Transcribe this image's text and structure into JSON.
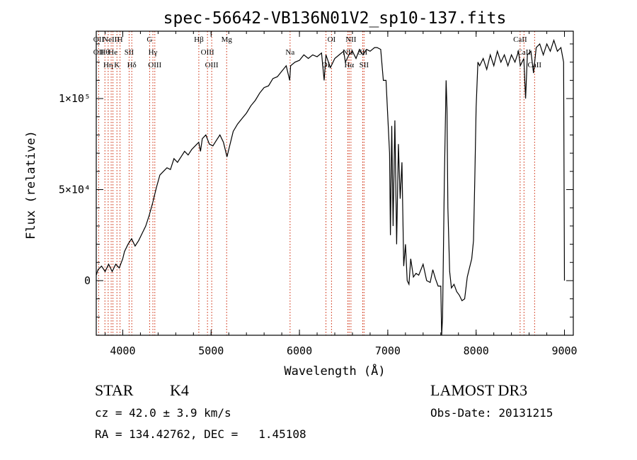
{
  "chart_data": {
    "type": "line",
    "title": "spec-56642-VB136N01V2_sp10-137.fits",
    "xlabel": "Wavelength (Å)",
    "ylabel": "Flux (relative)",
    "xlim": [
      3700,
      9100
    ],
    "ylim": [
      -30000,
      137000
    ],
    "x_ticks": [
      {
        "value": 4000,
        "label": "4000"
      },
      {
        "value": 5000,
        "label": "5000"
      },
      {
        "value": 6000,
        "label": "6000"
      },
      {
        "value": 7000,
        "label": "7000"
      },
      {
        "value": 8000,
        "label": "8000"
      },
      {
        "value": 9000,
        "label": "9000"
      }
    ],
    "y_ticks": [
      {
        "value": 0,
        "label": "0"
      },
      {
        "value": 50000,
        "label": "5×10⁴"
      },
      {
        "value": 100000,
        "label": "1×10⁵"
      }
    ],
    "grid": false,
    "line_color": "#000000",
    "marker_color": "#cc2200",
    "series": [
      {
        "points": [
          [
            3700,
            3000
          ],
          [
            3720,
            6000
          ],
          [
            3760,
            8000
          ],
          [
            3800,
            5000
          ],
          [
            3840,
            9000
          ],
          [
            3880,
            5000
          ],
          [
            3920,
            9000
          ],
          [
            3960,
            7000
          ],
          [
            4000,
            12000
          ],
          [
            4020,
            16000
          ],
          [
            4060,
            20000
          ],
          [
            4100,
            23000
          ],
          [
            4140,
            19000
          ],
          [
            4180,
            22000
          ],
          [
            4220,
            26000
          ],
          [
            4260,
            30000
          ],
          [
            4300,
            36000
          ],
          [
            4340,
            43000
          ],
          [
            4380,
            51000
          ],
          [
            4420,
            58000
          ],
          [
            4460,
            60000
          ],
          [
            4500,
            62000
          ],
          [
            4540,
            61000
          ],
          [
            4580,
            67000
          ],
          [
            4620,
            65000
          ],
          [
            4660,
            68000
          ],
          [
            4700,
            71000
          ],
          [
            4740,
            69000
          ],
          [
            4780,
            72000
          ],
          [
            4820,
            74000
          ],
          [
            4860,
            76000
          ],
          [
            4880,
            71000
          ],
          [
            4900,
            78000
          ],
          [
            4940,
            80000
          ],
          [
            4980,
            75000
          ],
          [
            5020,
            74000
          ],
          [
            5060,
            77000
          ],
          [
            5100,
            80000
          ],
          [
            5140,
            76000
          ],
          [
            5180,
            68000
          ],
          [
            5200,
            72000
          ],
          [
            5250,
            82000
          ],
          [
            5300,
            86000
          ],
          [
            5350,
            89000
          ],
          [
            5400,
            92000
          ],
          [
            5450,
            96000
          ],
          [
            5500,
            99000
          ],
          [
            5550,
            103000
          ],
          [
            5600,
            106000
          ],
          [
            5650,
            107000
          ],
          [
            5700,
            111000
          ],
          [
            5750,
            112000
          ],
          [
            5800,
            115000
          ],
          [
            5850,
            118000
          ],
          [
            5890,
            110000
          ],
          [
            5900,
            118000
          ],
          [
            5950,
            120000
          ],
          [
            6000,
            121000
          ],
          [
            6050,
            124000
          ],
          [
            6100,
            122000
          ],
          [
            6150,
            124000
          ],
          [
            6200,
            123000
          ],
          [
            6250,
            125000
          ],
          [
            6280,
            110000
          ],
          [
            6300,
            124000
          ],
          [
            6350,
            117000
          ],
          [
            6400,
            122000
          ],
          [
            6450,
            124000
          ],
          [
            6500,
            126000
          ],
          [
            6520,
            120000
          ],
          [
            6560,
            124000
          ],
          [
            6600,
            126000
          ],
          [
            6640,
            122000
          ],
          [
            6680,
            127000
          ],
          [
            6720,
            124000
          ],
          [
            6760,
            127000
          ],
          [
            6800,
            126000
          ],
          [
            6850,
            128000
          ],
          [
            6880,
            128000
          ],
          [
            6920,
            127000
          ],
          [
            6950,
            110000
          ],
          [
            6980,
            110000
          ],
          [
            7000,
            90000
          ],
          [
            7020,
            70000
          ],
          [
            7030,
            25000
          ],
          [
            7045,
            85000
          ],
          [
            7060,
            30000
          ],
          [
            7080,
            88000
          ],
          [
            7100,
            20000
          ],
          [
            7120,
            75000
          ],
          [
            7140,
            45000
          ],
          [
            7160,
            65000
          ],
          [
            7180,
            8000
          ],
          [
            7200,
            20000
          ],
          [
            7220,
            0
          ],
          [
            7240,
            -2000
          ],
          [
            7260,
            12000
          ],
          [
            7290,
            2000
          ],
          [
            7320,
            4000
          ],
          [
            7350,
            3000
          ],
          [
            7400,
            9000
          ],
          [
            7440,
            0
          ],
          [
            7480,
            -1000
          ],
          [
            7510,
            6000
          ],
          [
            7540,
            1000
          ],
          [
            7570,
            -3000
          ],
          [
            7600,
            -3000
          ],
          [
            7610,
            -30000
          ],
          [
            7620,
            -20000
          ],
          [
            7640,
            55000
          ],
          [
            7660,
            110000
          ],
          [
            7670,
            95000
          ],
          [
            7680,
            40000
          ],
          [
            7700,
            5000
          ],
          [
            7720,
            -4000
          ],
          [
            7750,
            -2000
          ],
          [
            7780,
            -6000
          ],
          [
            7810,
            -8000
          ],
          [
            7840,
            -11000
          ],
          [
            7870,
            -10000
          ],
          [
            7900,
            2000
          ],
          [
            7920,
            6000
          ],
          [
            7950,
            12000
          ],
          [
            7970,
            22000
          ],
          [
            7985,
            55000
          ],
          [
            8000,
            95000
          ],
          [
            8020,
            120000
          ],
          [
            8040,
            118000
          ],
          [
            8080,
            122000
          ],
          [
            8120,
            116000
          ],
          [
            8160,
            124000
          ],
          [
            8200,
            118000
          ],
          [
            8240,
            126000
          ],
          [
            8280,
            120000
          ],
          [
            8320,
            124000
          ],
          [
            8360,
            118000
          ],
          [
            8400,
            124000
          ],
          [
            8440,
            120000
          ],
          [
            8480,
            126000
          ],
          [
            8500,
            118000
          ],
          [
            8540,
            122000
          ],
          [
            8560,
            100000
          ],
          [
            8580,
            124000
          ],
          [
            8620,
            126000
          ],
          [
            8650,
            114000
          ],
          [
            8680,
            128000
          ],
          [
            8720,
            130000
          ],
          [
            8760,
            124000
          ],
          [
            8800,
            130000
          ],
          [
            8840,
            126000
          ],
          [
            8880,
            132000
          ],
          [
            8920,
            126000
          ],
          [
            8960,
            128000
          ],
          [
            8990,
            120000
          ],
          [
            9000,
            0
          ]
        ]
      }
    ],
    "line_markers": [
      {
        "x": 3727,
        "labels": [
          "OII",
          "OII"
        ]
      },
      {
        "x": 3798,
        "labels": [
          "Hθ"
        ]
      },
      {
        "x": 3835,
        "labels": [
          "Hη"
        ]
      },
      {
        "x": 3869,
        "labels": [
          "NeIII"
        ]
      },
      {
        "x": 3889,
        "labels": [
          "He"
        ]
      },
      {
        "x": 3934,
        "labels": [
          "K"
        ]
      },
      {
        "x": 3969,
        "labels": [
          "H"
        ]
      },
      {
        "x": 4072,
        "labels": [
          "SII"
        ]
      },
      {
        "x": 4102,
        "labels": [
          "Hδ"
        ]
      },
      {
        "x": 4304,
        "labels": [
          "G"
        ]
      },
      {
        "x": 4341,
        "labels": [
          "Hγ"
        ]
      },
      {
        "x": 4363,
        "labels": [
          "OIII"
        ]
      },
      {
        "x": 4861,
        "labels": [
          "Hβ"
        ]
      },
      {
        "x": 4959,
        "labels": [
          "OIII"
        ]
      },
      {
        "x": 5007,
        "labels": [
          "OIII"
        ]
      },
      {
        "x": 5176,
        "labels": [
          "Mg"
        ]
      },
      {
        "x": 5894,
        "labels": [
          "Na"
        ]
      },
      {
        "x": 6300,
        "labels": [
          "OI"
        ]
      },
      {
        "x": 6363,
        "labels": [
          "OI"
        ]
      },
      {
        "x": 6548,
        "labels": [
          "NII"
        ]
      },
      {
        "x": 6563,
        "labels": [
          "Hα"
        ]
      },
      {
        "x": 6583,
        "labels": [
          "NII"
        ]
      },
      {
        "x": 6716,
        "labels": [
          "SII"
        ]
      },
      {
        "x": 6731,
        "labels": [
          "SII"
        ]
      },
      {
        "x": 8498,
        "labels": [
          "CaII"
        ]
      },
      {
        "x": 8542,
        "labels": [
          "CaII"
        ]
      },
      {
        "x": 8662,
        "labels": [
          "CaII"
        ]
      }
    ]
  },
  "footer": {
    "class_label": "STAR",
    "subclass": "K4",
    "cz": "cz = 42.0 ± 3.9 km/s",
    "radec": "RA = 134.42762, DEC =   1.45108",
    "survey": "LAMOST DR3",
    "obs_date": "Obs-Date: 20131215"
  }
}
